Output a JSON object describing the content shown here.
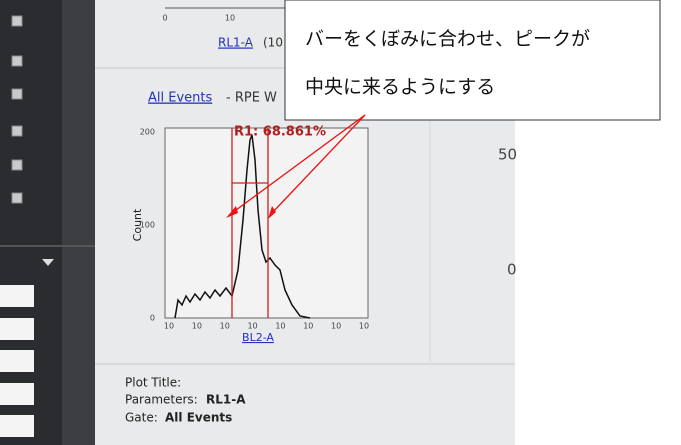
{
  "top_axis": {
    "ticks": [
      "0",
      "10"
    ],
    "label": "RL1-A",
    "label_suffix": "(10"
  },
  "callout": {
    "lines": [
      "バーをくぼみに合わせ、ピークが",
      "中央に来るようにする"
    ]
  },
  "plot": {
    "link": "All Events",
    "title_rest": "- RPE W",
    "region_label": "R1: 68.861%",
    "y_axis_label": "Count",
    "y_ticks": [
      "200",
      "100",
      "0"
    ],
    "x_ticks": [
      "10",
      "10",
      "10",
      "10",
      "10",
      "10",
      "10",
      "10"
    ],
    "x_axis_label": "BL2-A"
  },
  "right_panel": {
    "labels": [
      "50",
      "0"
    ]
  },
  "info": {
    "plot_title_label": "Plot Title:",
    "parameters_label": "Parameters:",
    "parameters_value": "RL1-A",
    "gate_label": "Gate:",
    "gate_value": "All Events"
  }
}
